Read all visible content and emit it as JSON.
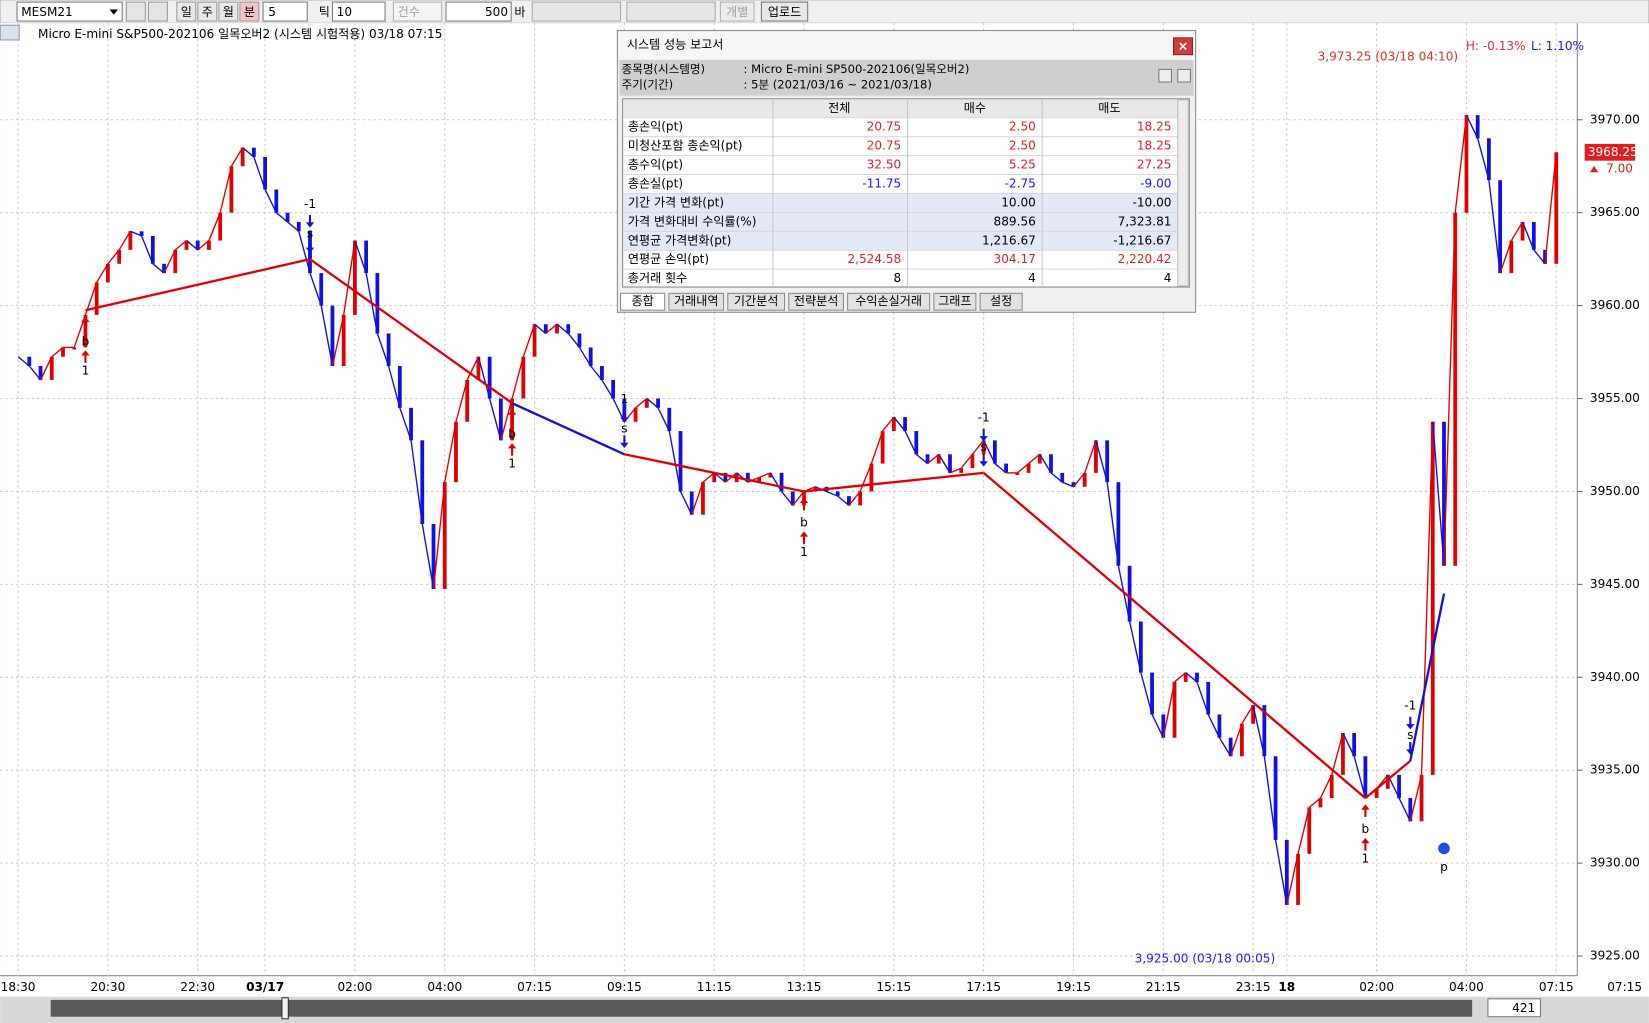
{
  "toolbar": {
    "symbol": "MESM21",
    "period_buttons": [
      "일",
      "주",
      "월",
      "분"
    ],
    "period_value": "5",
    "tick_label": "틱",
    "tick_value": "10",
    "count_label": "건수",
    "bar_count": "500",
    "bar_unit": "바",
    "individual": "개별",
    "upload": "업로드"
  },
  "header": "Micro E-mini S&P500-202106 일목오버2 (시스템 시험적용) 03/18 07:15",
  "chart_data": {
    "type": "line",
    "categories": [
      "18:30",
      null,
      null,
      null,
      null,
      null,
      null,
      null,
      "20:30",
      null,
      null,
      null,
      null,
      null,
      null,
      null,
      "22:30",
      null,
      null,
      null,
      null,
      null,
      "03/17",
      null,
      null,
      null,
      null,
      null,
      null,
      null,
      "02:00",
      null,
      null,
      null,
      null,
      null,
      null,
      null,
      "04:00",
      null,
      null,
      null,
      null,
      null,
      null,
      null,
      "07:15",
      null,
      null,
      null,
      null,
      null,
      null,
      null,
      "09:15",
      null,
      null,
      null,
      null,
      null,
      null,
      null,
      "11:15",
      null,
      null,
      null,
      null,
      null,
      null,
      null,
      "13:15",
      null,
      null,
      null,
      null,
      null,
      null,
      null,
      "15:15",
      null,
      null,
      null,
      null,
      null,
      null,
      null,
      "17:15",
      null,
      null,
      null,
      null,
      null,
      null,
      null,
      "19:15",
      null,
      null,
      null,
      null,
      null,
      null,
      null,
      "21:15",
      null,
      null,
      null,
      null,
      null,
      null,
      null,
      "23:15",
      null,
      null,
      "18",
      null,
      null,
      null,
      null,
      null,
      null,
      null,
      "02:00",
      null,
      null,
      null,
      null,
      null,
      null,
      null,
      "04:00",
      null,
      null,
      null,
      null,
      null,
      null,
      null,
      "07:15"
    ],
    "series": [
      {
        "up_color": "#e00000",
        "down_color": "#1010e0",
        "values": [
          3957.25,
          3956.75,
          3956.0,
          3957.25,
          3957.75,
          3957.75,
          3959.5,
          3961.25,
          3962.25,
          3963.0,
          3964.0,
          3963.75,
          3962.25,
          3961.75,
          3963.0,
          3963.5,
          3963.0,
          3963.5,
          3965.0,
          3967.5,
          3968.5,
          3968.0,
          3966.25,
          3965.0,
          3964.5,
          3964.0,
          3961.75,
          3960.0,
          3956.75,
          3959.5,
          3963.5,
          3961.75,
          3958.5,
          3956.75,
          3954.5,
          3952.75,
          3948.25,
          3944.75,
          3950.5,
          3953.75,
          3956.0,
          3957.25,
          3955.0,
          3952.75,
          3955.0,
          3957.25,
          3959.0,
          3958.5,
          3959.0,
          3958.5,
          3957.75,
          3956.75,
          3956.0,
          3955.0,
          3953.75,
          3954.5,
          3955.0,
          3954.5,
          3953.25,
          3950.0,
          3948.75,
          3950.5,
          3951.0,
          3950.5,
          3951.0,
          3950.5,
          3950.75,
          3951.0,
          3950.0,
          3949.25,
          3950.0,
          3950.25,
          3950.0,
          3949.75,
          3949.25,
          3950.0,
          3951.5,
          3953.25,
          3954.0,
          3953.25,
          3952.0,
          3951.5,
          3952.0,
          3951.0,
          3951.25,
          3952.0,
          3952.75,
          3951.5,
          3951.0,
          3951.0,
          3951.5,
          3952.0,
          3951.0,
          3950.5,
          3950.25,
          3951.0,
          3952.75,
          3950.5,
          3946.0,
          3943.0,
          3940.25,
          3938.0,
          3936.75,
          3939.75,
          3940.25,
          3939.75,
          3938.0,
          3936.75,
          3935.75,
          3937.5,
          3938.5,
          3935.75,
          3931.25,
          3927.75,
          3930.5,
          3933.0,
          3933.5,
          3934.75,
          3937.0,
          3935.75,
          3933.5,
          3934.0,
          3934.75,
          3933.5,
          3932.25,
          3934.75,
          3953.75,
          3946.0,
          3965.0,
          3970.25,
          3969.0,
          3966.75,
          3961.75,
          3963.5,
          3964.5,
          3963.0,
          3962.25,
          3968.25
        ]
      },
      {
        "segment_colors": [
          "#e00000",
          "#e00000",
          "#1010e0",
          "#e00000",
          "#e00000",
          "#e00000",
          "#e00000",
          "#1010e0"
        ],
        "values": [
          null,
          null,
          null,
          null,
          null,
          null,
          3959.75,
          null,
          null,
          null,
          null,
          null,
          null,
          null,
          null,
          null,
          null,
          null,
          null,
          null,
          null,
          null,
          null,
          null,
          null,
          null,
          3962.5,
          null,
          null,
          null,
          null,
          null,
          null,
          null,
          null,
          null,
          null,
          null,
          null,
          null,
          null,
          null,
          null,
          null,
          3954.75,
          null,
          null,
          null,
          null,
          null,
          null,
          null,
          null,
          null,
          3952.0,
          null,
          null,
          null,
          null,
          null,
          null,
          null,
          null,
          null,
          null,
          null,
          null,
          null,
          null,
          null,
          3950.0,
          null,
          null,
          null,
          null,
          null,
          null,
          null,
          null,
          null,
          null,
          null,
          null,
          null,
          null,
          null,
          3951.0,
          null,
          null,
          null,
          null,
          null,
          null,
          null,
          null,
          null,
          null,
          null,
          null,
          null,
          null,
          null,
          null,
          null,
          null,
          null,
          null,
          null,
          null,
          null,
          null,
          null,
          null,
          null,
          null,
          null,
          null,
          null,
          null,
          null,
          3933.5,
          null,
          null,
          null,
          3935.5,
          null,
          null,
          3944.5,
          null,
          null,
          null,
          null,
          null,
          null,
          null,
          null,
          null,
          null
        ],
        "signals": [
          null,
          null,
          null,
          null,
          null,
          null,
          {
            "side": "b",
            "qty": "1"
          },
          null,
          null,
          null,
          null,
          null,
          null,
          null,
          null,
          null,
          null,
          null,
          null,
          null,
          null,
          null,
          null,
          null,
          null,
          null,
          {
            "side": "s",
            "qty": "-1"
          },
          null,
          null,
          null,
          null,
          null,
          null,
          null,
          null,
          null,
          null,
          null,
          null,
          null,
          null,
          null,
          null,
          null,
          {
            "side": "b",
            "qty": "1"
          },
          null,
          null,
          null,
          null,
          null,
          null,
          null,
          null,
          null,
          {
            "side": "s",
            "qty": "1"
          },
          null,
          null,
          null,
          null,
          null,
          null,
          null,
          null,
          null,
          null,
          null,
          null,
          null,
          null,
          null,
          {
            "side": "b",
            "qty": "1"
          },
          null,
          null,
          null,
          null,
          null,
          null,
          null,
          null,
          null,
          null,
          null,
          null,
          null,
          null,
          null,
          {
            "side": "s",
            "qty": "-1"
          },
          null,
          null,
          null,
          null,
          null,
          null,
          null,
          null,
          null,
          null,
          null,
          null,
          null,
          null,
          null,
          null,
          null,
          null,
          null,
          null,
          null,
          null,
          null,
          null,
          null,
          null,
          null,
          null,
          null,
          null,
          null,
          null,
          null,
          {
            "side": "b",
            "qty": "1"
          },
          null,
          null,
          null,
          {
            "side": "s",
            "qty": "-1"
          },
          null,
          null,
          {
            "side": "p"
          },
          null,
          null,
          null,
          null,
          null,
          null,
          null,
          null,
          null,
          null
        ]
      }
    ],
    "ylim": [
      3924.0,
      3975.2
    ],
    "yticks": [
      {
        "value": 3925,
        "label": "3925.00"
      },
      {
        "value": 3930,
        "label": "3930.00"
      },
      {
        "value": 3935,
        "label": "3935.00"
      },
      {
        "value": 3940,
        "label": "3940.00"
      },
      {
        "value": 3945,
        "label": "3945.00"
      },
      {
        "value": 3950,
        "label": "3950.00"
      },
      {
        "value": 3955,
        "label": "3955.00"
      },
      {
        "value": 3960,
        "label": "3960.00"
      },
      {
        "value": 3965,
        "label": "3965.00"
      },
      {
        "value": 3970,
        "label": "3970.00"
      }
    ],
    "grid": true,
    "high_note": "3,973.25 (03/18 04:10)",
    "low_note": "3,925.00 (03/18 00:05)",
    "high_pct": "H: -0.13%",
    "low_pct": "L: 1.10%",
    "last_price": 3968.25,
    "change": {
      "value": 7,
      "label": "7.00"
    },
    "current_time": "07:15"
  },
  "scroll": {
    "bars": "421"
  },
  "report": {
    "title": "시스템 성능 보고서",
    "info": [
      [
        "종목명(시스템명)",
        ": Micro E-mini SP500-202106(일목오버2)"
      ],
      [
        "주기(기간)",
        ": 5분 (2021/03/16 ~ 2021/03/18)"
      ]
    ],
    "columns": [
      "전체",
      "매수",
      "매도"
    ],
    "rows": [
      {
        "label": "총손익(pt)",
        "cells": [
          "20.75",
          "2.50",
          "18.25"
        ],
        "color": "#e02020"
      },
      {
        "label": "미청산포함 총손익(pt)",
        "cells": [
          "20.75",
          "2.50",
          "18.25"
        ],
        "color": "#e02020"
      },
      {
        "label": "총수익(pt)",
        "cells": [
          "32.50",
          "5.25",
          "27.25"
        ],
        "color": "#e02020"
      },
      {
        "label": "총손실(pt)",
        "cells": [
          "-11.75",
          "-2.75",
          "-9.00"
        ],
        "color": "#1a1aff"
      },
      {
        "label": "기간 가격 변화(pt)",
        "cells": [
          null,
          "10.00",
          "-10.00"
        ],
        "color": "#000000",
        "background": "#e4e8f6"
      },
      {
        "label": "가격 변화대비 수익률(%)",
        "cells": [
          null,
          "889.56",
          "7,323.81"
        ],
        "color": "#000000",
        "background": "#e4e8f6"
      },
      {
        "label": "연평균 가격변화(pt)",
        "cells": [
          null,
          "1,216.67",
          "-1,216.67"
        ],
        "color": "#000000",
        "background": "#e4e8f6"
      },
      {
        "label": "연평균 손익(pt)",
        "cells": [
          "2,524.58",
          "304.17",
          "2,220.42"
        ],
        "color": "#e02020"
      },
      {
        "label": "총거래 횟수",
        "cells": [
          "8",
          "4",
          "4"
        ],
        "color": "#000000"
      }
    ],
    "tabs": [
      "종합",
      "거래내역",
      "기간분석",
      "전략분석",
      "수익손실거래",
      "그래프",
      "설정"
    ]
  }
}
